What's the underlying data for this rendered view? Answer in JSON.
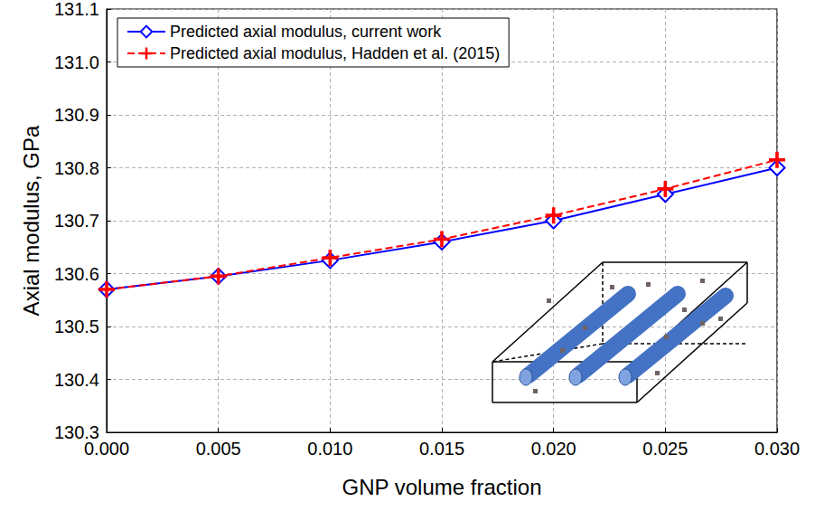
{
  "chart_data": {
    "type": "line",
    "x_label": "GNP volume fraction",
    "y_label": "Axial modulus, GPa",
    "x": [
      0,
      0.005,
      0.01,
      0.015,
      0.02,
      0.025,
      0.03
    ],
    "series": [
      {
        "name": "Predicted axial modulus, current work",
        "color": "#0000ff",
        "marker": "diamond",
        "line_style": "solid",
        "values": [
          130.57,
          130.595,
          130.625,
          130.66,
          130.7,
          130.75,
          130.8
        ]
      },
      {
        "name": "Predicted axial modulus, Hadden et al. (2015)",
        "color": "#ff0000",
        "marker": "plus",
        "line_style": "dashed",
        "values": [
          130.57,
          130.595,
          130.63,
          130.665,
          130.71,
          130.76,
          130.815
        ]
      }
    ],
    "xlim": [
      0,
      0.03
    ],
    "xticks": [
      {
        "value": 0,
        "label": "0.000"
      },
      {
        "value": 0.005,
        "label": "0.005"
      },
      {
        "value": 0.01,
        "label": "0.010"
      },
      {
        "value": 0.015,
        "label": "0.015"
      },
      {
        "value": 0.02,
        "label": "0.020"
      },
      {
        "value": 0.025,
        "label": "0.025"
      },
      {
        "value": 0.03,
        "label": "0.030"
      }
    ],
    "ylim": [
      130.3,
      131.1
    ],
    "yticks": [
      130.3,
      130.4,
      130.5,
      130.6,
      130.7,
      130.8,
      130.9,
      {
        "value": 131,
        "label": "131.0"
      },
      131.1
    ],
    "grid": true,
    "legend": "upper left"
  }
}
